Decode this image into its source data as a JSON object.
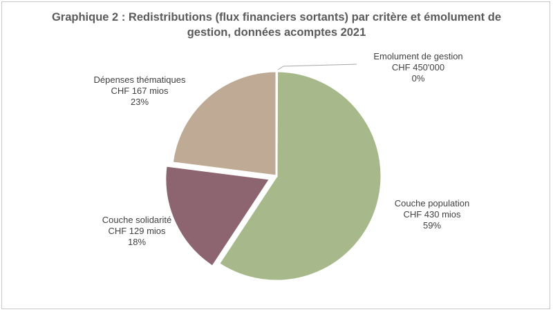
{
  "chart_data": {
    "type": "pie",
    "title": "Graphique 2 : Redistributions (flux financiers sortants) par critère et émolument de gestion, données acomptes 2021",
    "title_lines": [
      "Graphique 2 : Redistributions (flux financiers sortants) par critère et émolument de",
      "gestion, données acomptes 2021"
    ],
    "start_angle_deg": 0,
    "direction": "clockwise",
    "slices": [
      {
        "key": "emolument",
        "name": "Emolument de gestion",
        "amount": "CHF 450'000",
        "percent": "0%",
        "value": 0.45,
        "color": "#a9b98c",
        "explode": false
      },
      {
        "key": "population",
        "name": "Couche population",
        "amount": "CHF 430 mios",
        "percent": "59%",
        "value": 430,
        "color": "#a7b98a",
        "explode": false
      },
      {
        "key": "solidarite",
        "name": "Couche solidarité",
        "amount": "CHF 129 mios",
        "percent": "18%",
        "value": 129,
        "color": "#8c6570",
        "explode": true
      },
      {
        "key": "thematiques",
        "name": "Dépenses thématiques",
        "amount": "CHF 167 mios",
        "percent": "23%",
        "value": 167,
        "color": "#bfab95",
        "explode": false
      }
    ]
  }
}
